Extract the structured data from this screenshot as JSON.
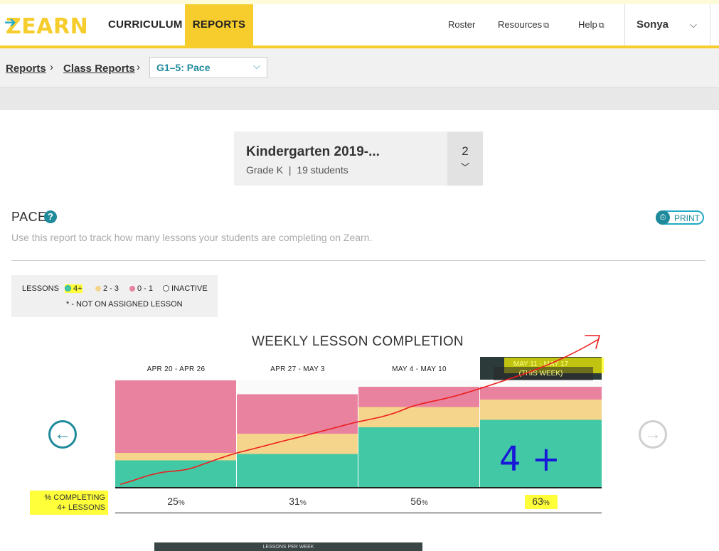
{
  "nav": {
    "logo": "ZEARN",
    "curriculum": "CURRICULUM",
    "reports": "REPORTS",
    "roster": "Roster",
    "resources": "Resources",
    "help": "Help",
    "user": "Sonya"
  },
  "breadcrumb": {
    "reports": "Reports",
    "class_reports": "Class Reports",
    "select_value": "G1–5: Pace"
  },
  "class_card": {
    "name": "Kindergarten 2019-...",
    "grade": "Grade K",
    "students": "19 students",
    "count": "2"
  },
  "pace": {
    "title": "PACE",
    "description": "Use this report to track how many lessons your students are completing on Zearn.",
    "print": "PRINT"
  },
  "legend": {
    "lessons": "LESSONS",
    "items": [
      {
        "label": "4+",
        "color": "#43c8a6"
      },
      {
        "label": "2 - 3",
        "color": "#f5d48b"
      },
      {
        "label": "0 - 1",
        "color": "#e8829f"
      },
      {
        "label": "INACTIVE",
        "color": "#ffffff"
      }
    ],
    "note": "* - NOT ON ASSIGNED LESSON"
  },
  "chart_data": {
    "type": "bar",
    "title": "WEEKLY LESSON COMPLETION",
    "categories": [
      "APR 20 - APR 26",
      "APR 27 - MAY 3",
      "MAY 4 - MAY 10",
      "MAY 11 - MAY 17"
    ],
    "this_week_label": "(THIS WEEK)",
    "stacked": true,
    "ylim": [
      0,
      100
    ],
    "series": [
      {
        "name": "4+",
        "color": "#43c8a6",
        "values": [
          25,
          31,
          56,
          63
        ]
      },
      {
        "name": "2 - 3",
        "color": "#f5d48b",
        "values": [
          7,
          19,
          19,
          19
        ]
      },
      {
        "name": "0 - 1",
        "color": "#e8829f",
        "values": [
          68,
          37,
          19,
          12
        ]
      },
      {
        "name": "INACTIVE",
        "color": "#fafafa",
        "values": [
          0,
          13,
          6,
          6
        ]
      }
    ],
    "percent_label": "% COMPLETING 4+ LESSONS",
    "percent_label_lines": [
      "% COMPLETING",
      "4+ LESSONS"
    ],
    "percents": [
      "25",
      "31",
      "56",
      "63"
    ],
    "percent_unit": "%"
  },
  "annotation": {
    "handwritten": "4 +",
    "line_color": "#ee1c1c",
    "pen_color": "#1818d8"
  },
  "bottom_panel": {
    "label": "LESSONS PER WEEK"
  }
}
